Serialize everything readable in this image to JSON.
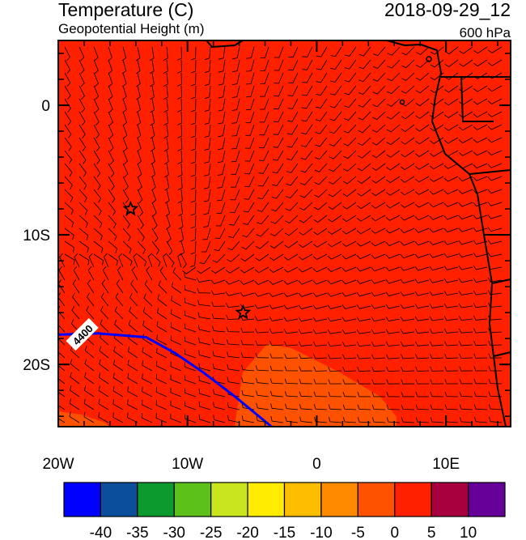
{
  "chart_data": {
    "type": "map",
    "title": "Temperature (C)",
    "subtitle": "Geopotential Height (m)",
    "date": "2018-09-29_12",
    "level": "600 hPa",
    "xlim": [
      -20,
      15
    ],
    "ylim": [
      -24.8,
      5
    ],
    "xticks": [
      {
        "value": -20,
        "label": "20W"
      },
      {
        "value": -10,
        "label": "10W"
      },
      0,
      {
        "value": 10,
        "label": "10E"
      }
    ],
    "yticks": [
      0,
      {
        "value": -10,
        "label": "10S"
      },
      {
        "value": -20,
        "label": "20S"
      }
    ],
    "background_color": "#ff2000",
    "contour": {
      "label": 4400,
      "color": "#0000ff",
      "lon": [
        -20,
        -16.9,
        -13.2,
        -11,
        -8.8,
        -6.3,
        -3.5
      ],
      "lat": [
        -17.7,
        -17.6,
        -17.9,
        -19.1,
        -20.6,
        -22.5,
        -24.8
      ]
    },
    "stars": {
      "lon": [
        -14.4,
        -5.7
      ],
      "lat": [
        -8,
        -16
      ]
    },
    "colorbar": {
      "colors": [
        "#0000ff",
        "#0b4f9c",
        "#0c9a2e",
        "#5cc119",
        "#c9e51e",
        "#ffec00",
        "#ffbd00",
        "#ff8a00",
        "#ff5200",
        "#ff2000",
        "#a8003f",
        "#660099"
      ],
      "labels": [
        -40,
        -35,
        -30,
        -25,
        -20,
        -15,
        -10,
        -5,
        0,
        5,
        10
      ]
    }
  }
}
